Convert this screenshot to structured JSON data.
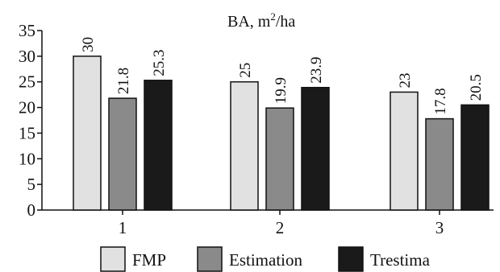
{
  "chart_data": {
    "type": "bar",
    "title": "BA, m²/ha",
    "title_main": "BA, m",
    "title_sup": "2",
    "title_tail": "/ha",
    "xlabel": "",
    "ylabel": "",
    "categories": [
      "1",
      "2",
      "3"
    ],
    "series": [
      {
        "name": "FMP",
        "color": "#e1e1e1",
        "values": [
          30,
          25,
          23
        ],
        "labels": [
          "30",
          "25",
          "23"
        ]
      },
      {
        "name": "Estimation",
        "color": "#8a8a8a",
        "values": [
          21.8,
          19.9,
          17.8
        ],
        "labels": [
          "21.8",
          "19.9",
          "17.8"
        ]
      },
      {
        "name": "Trestima",
        "color": "#1a1a1a",
        "values": [
          25.3,
          23.9,
          20.5
        ],
        "labels": [
          "25.3",
          "23.9",
          "20.5"
        ]
      }
    ],
    "ylim": [
      0,
      35
    ],
    "yticks": [
      0,
      5,
      10,
      15,
      20,
      25,
      30,
      35
    ],
    "ytick_labels": [
      "0",
      "5",
      "10",
      "15",
      "20",
      "25",
      "30",
      "35"
    ],
    "grid": false,
    "legend_position": "bottom"
  }
}
